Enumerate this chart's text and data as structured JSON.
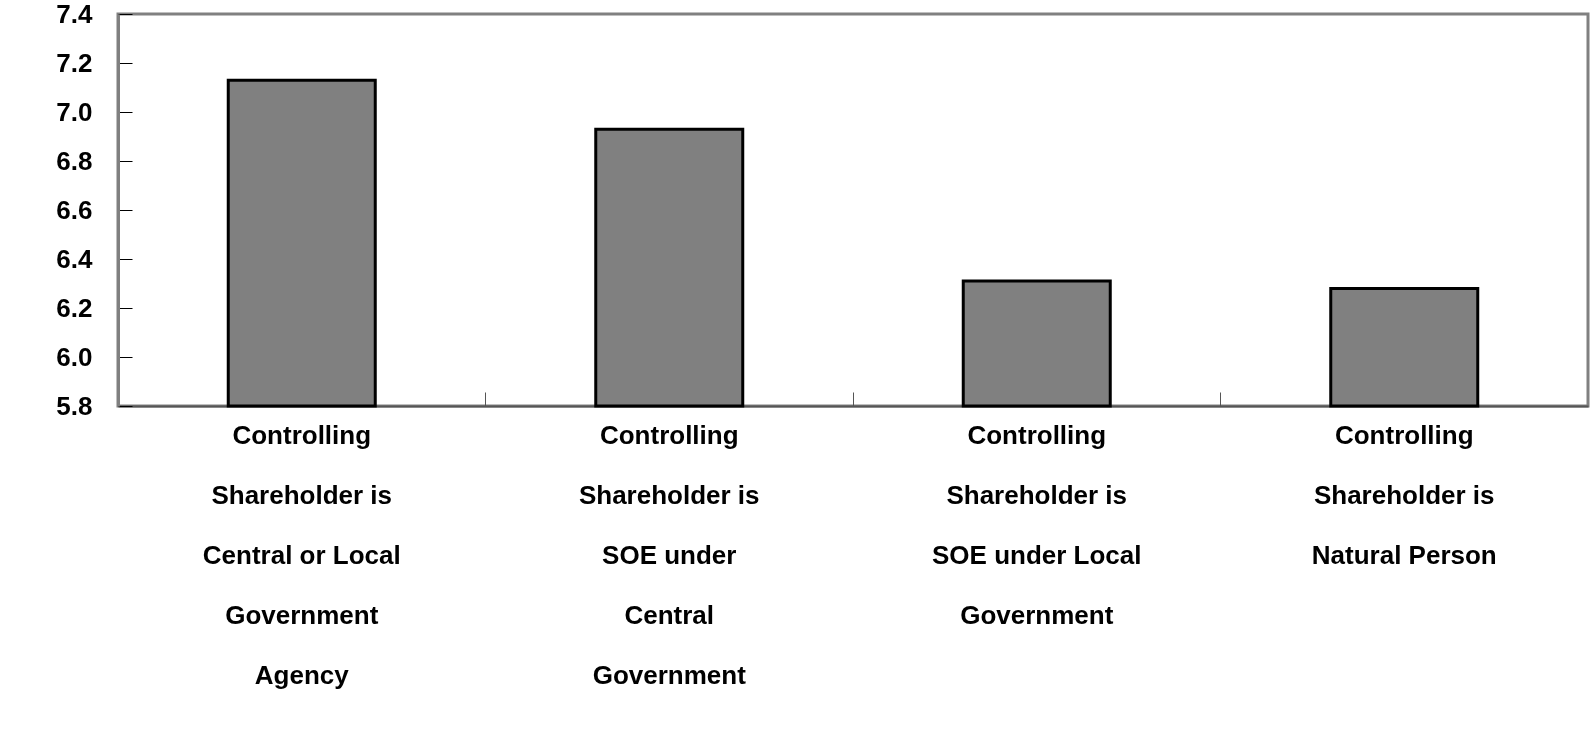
{
  "chart_data": {
    "type": "bar",
    "categories": [
      "Controlling Shareholder is Central or Local Government Agency",
      "Controlling Shareholder is SOE under Central Government",
      "Controlling Shareholder is SOE under Local Government",
      "Controlling Shareholder is Natural Person"
    ],
    "values": [
      7.13,
      6.93,
      6.31,
      6.28
    ],
    "color": "#808080",
    "ylim": [
      5.8,
      7.4
    ],
    "yticks": [
      5.8,
      {
        "value": 6,
        "label": "6.0"
      },
      6.2,
      6.4,
      6.6,
      6.8,
      {
        "value": 7,
        "label": "7.0"
      },
      7.2,
      7.4
    ],
    "grid": false
  }
}
